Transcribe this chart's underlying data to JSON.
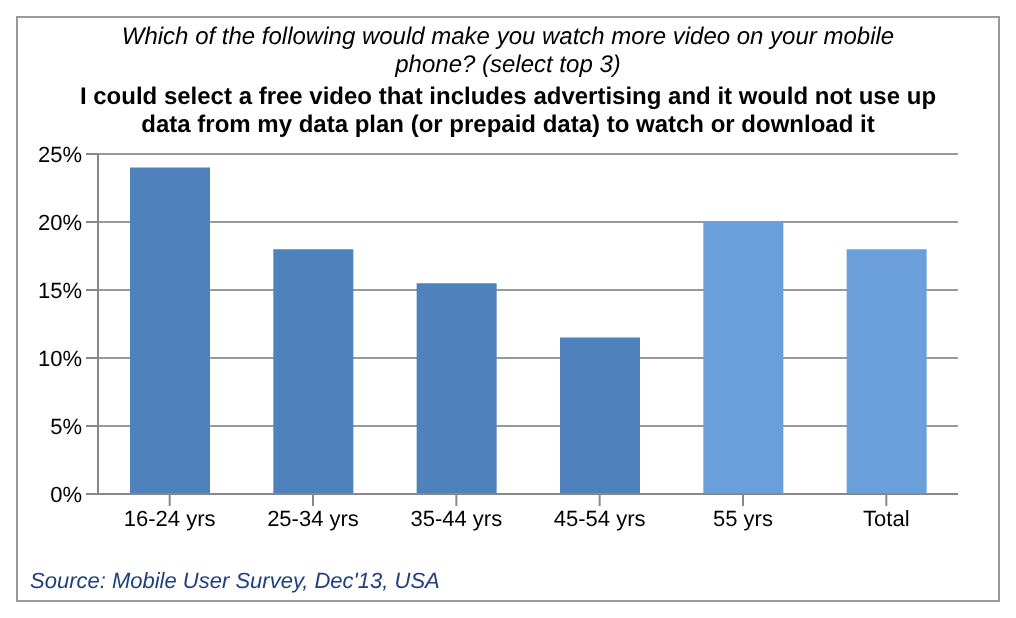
{
  "chart_data": {
    "type": "bar",
    "title": "Which of the following would make you watch more video on your mobile phone? (select top 3)",
    "subtitle": "I could select a free video that includes advertising and it would not use up data from my data plan (or prepaid data) to watch or download it",
    "categories": [
      "16-24 yrs",
      "25-34 yrs",
      "35-44 yrs",
      "45-54 yrs",
      "55 yrs",
      "Total"
    ],
    "values": [
      0.24,
      0.18,
      0.155,
      0.115,
      0.2,
      0.18
    ],
    "colors": [
      "#4f81bd",
      "#4f81bd",
      "#4f81bd",
      "#4f81bd",
      "#6a9fdb",
      "#6a9fdb"
    ],
    "ylim": [
      0,
      0.25
    ],
    "yticks": [
      {
        "value": 0,
        "label": "0%"
      },
      {
        "value": 0.05,
        "label": "5%"
      },
      {
        "value": 0.1,
        "label": "10%"
      },
      {
        "value": 0.15,
        "label": "15%"
      },
      {
        "value": 0.2,
        "label": "20%"
      },
      {
        "value": 0.25,
        "label": "25%"
      }
    ],
    "grid": "y",
    "annotations": [
      "Source: Mobile User Survey, Dec'13, USA"
    ]
  }
}
